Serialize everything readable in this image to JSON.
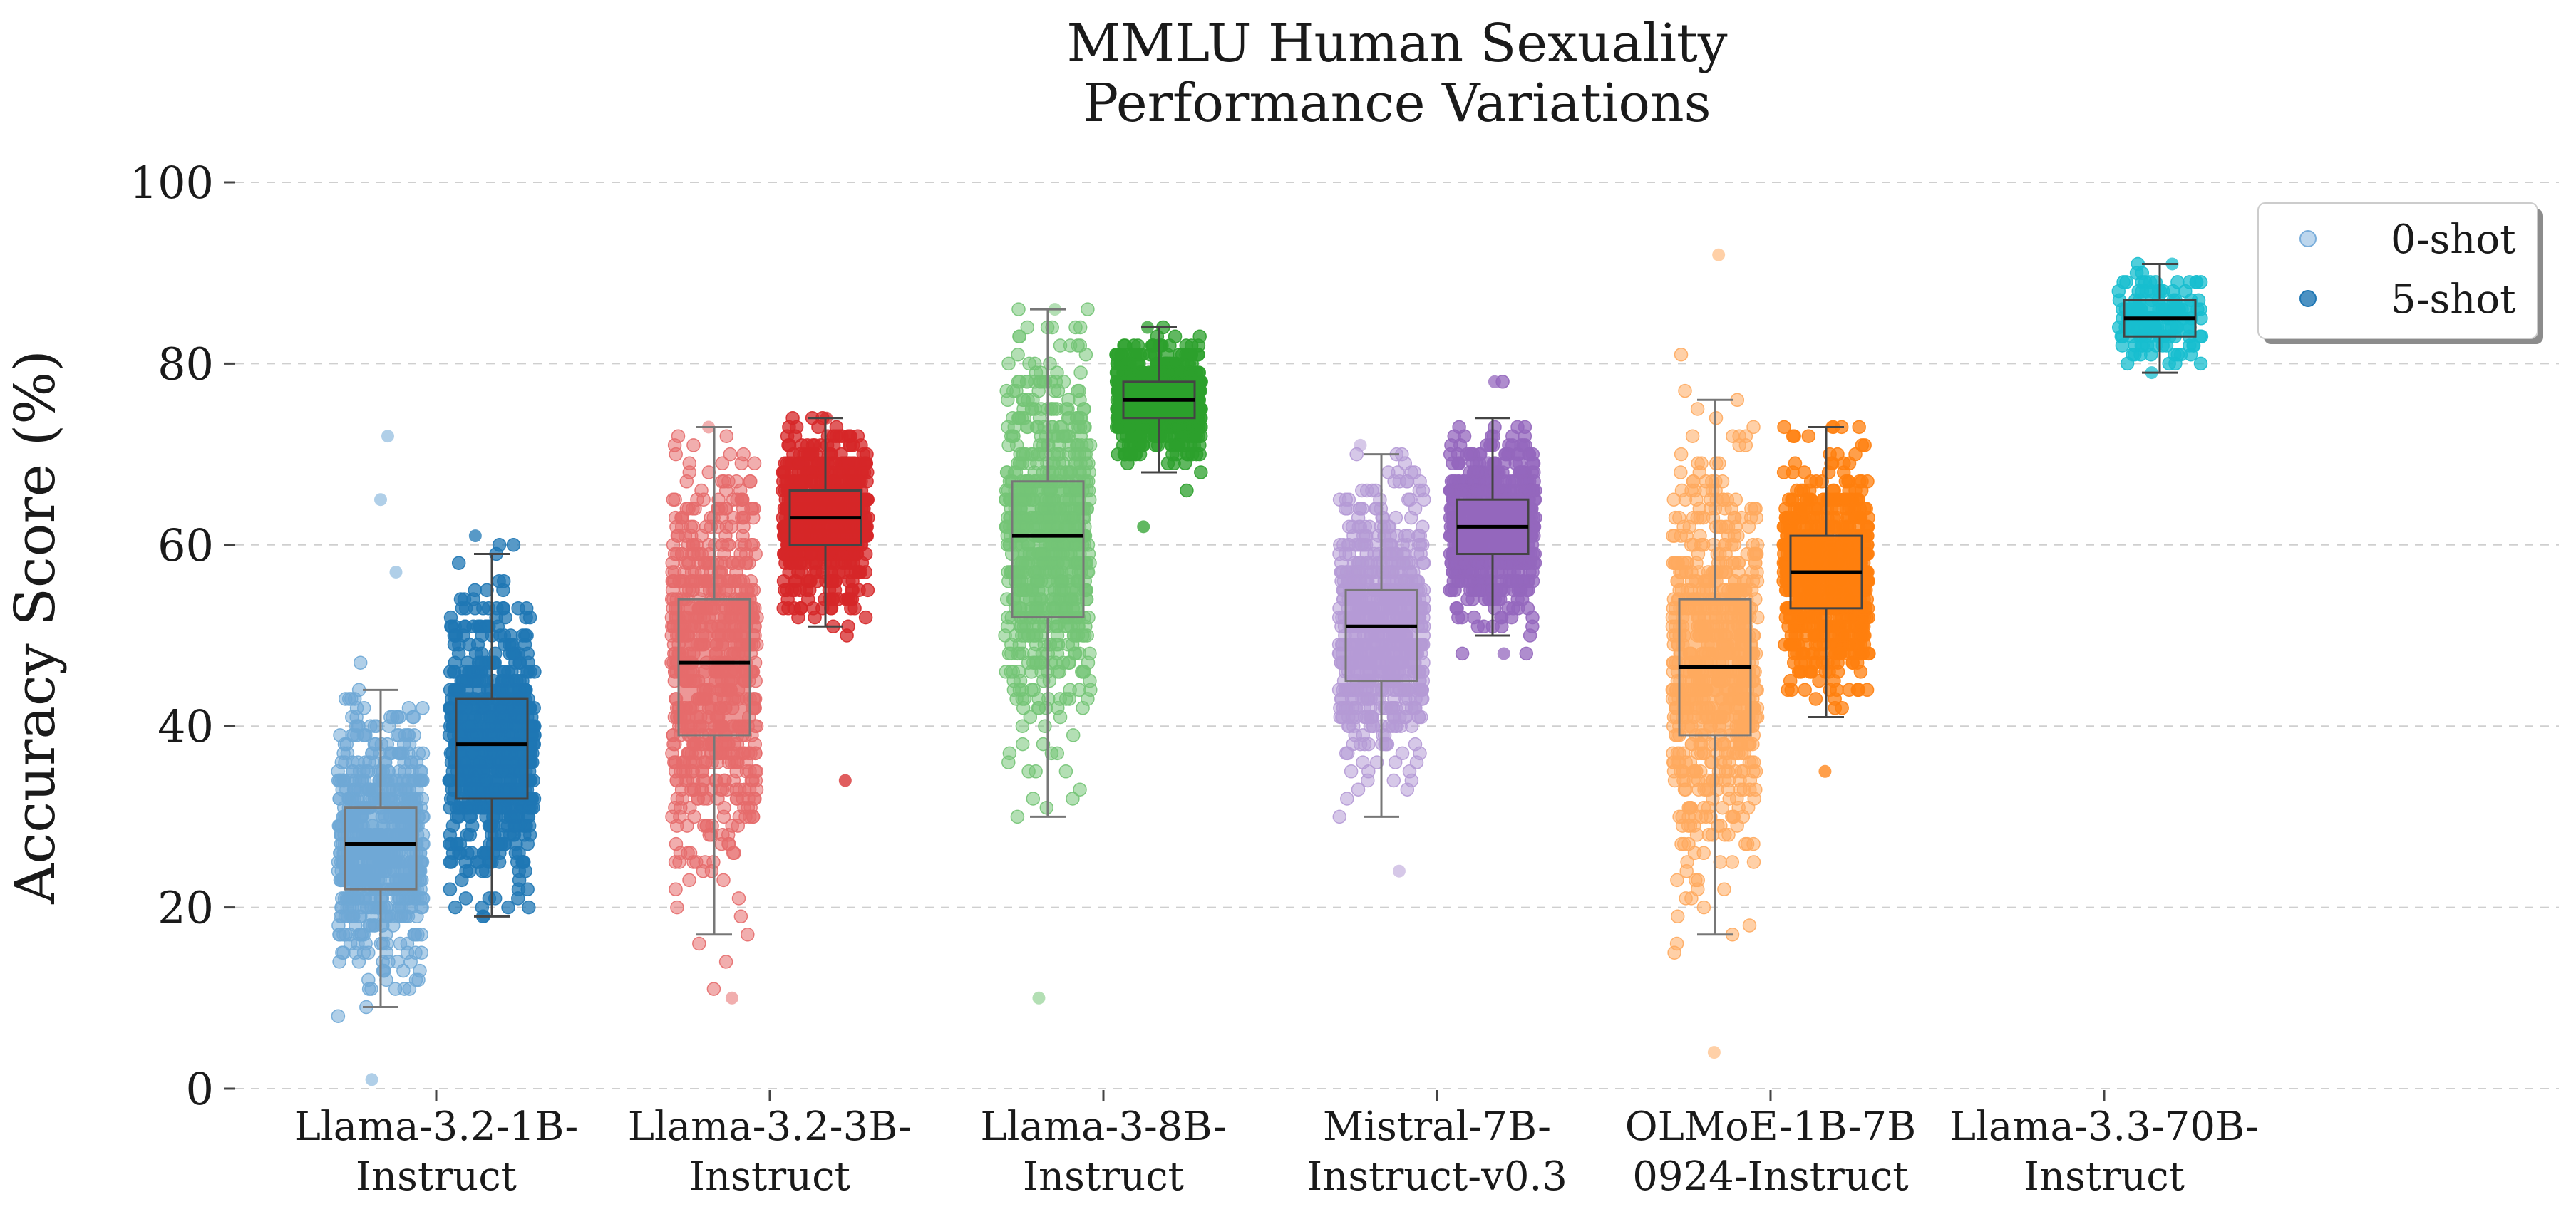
{
  "chart_data": {
    "type": "box-strip",
    "title_lines": [
      "MMLU Human Sexuality",
      "Performance Variations"
    ],
    "ylabel": "Accuracy Score (%)",
    "ylim": [
      0,
      100
    ],
    "yticks": [
      0,
      20,
      40,
      60,
      80,
      100
    ],
    "grid": "horizontal-dashed",
    "legend": {
      "placement": "top-right",
      "entries": [
        {
          "label": "0-shot",
          "color": "#7aaedb",
          "alpha": 0.5
        },
        {
          "label": "5-shot",
          "color": "#1f77b4",
          "alpha": 0.8
        }
      ]
    },
    "categories": [
      {
        "name_lines": [
          "Llama-3.2-1B-",
          "Instruct"
        ],
        "series": [
          {
            "shot": "0-shot",
            "color": "#6fa8d6",
            "whisker_low": 9,
            "q1": 22,
            "median": 27,
            "q3": 31,
            "whisker_high": 44,
            "point_min": 1,
            "point_max": 57,
            "outliers": [
              65,
              72
            ],
            "density": 1.0
          },
          {
            "shot": "5-shot",
            "color": "#1f77b4",
            "whisker_low": 19,
            "q1": 32,
            "median": 38,
            "q3": 43,
            "whisker_high": 59,
            "point_min": 19,
            "point_max": 61,
            "outliers": [],
            "density": 1.0
          }
        ]
      },
      {
        "name_lines": [
          "Llama-3.2-3B-",
          "Instruct"
        ],
        "series": [
          {
            "shot": "0-shot",
            "color": "#e56b6b",
            "whisker_low": 17,
            "q1": 39,
            "median": 47,
            "q3": 54,
            "whisker_high": 73,
            "point_min": 10,
            "point_max": 73,
            "outliers": [],
            "density": 1.0
          },
          {
            "shot": "5-shot",
            "color": "#d62728",
            "whisker_low": 51,
            "q1": 60,
            "median": 63,
            "q3": 66,
            "whisker_high": 74,
            "point_min": 34,
            "point_max": 74,
            "outliers": [],
            "density": 1.0
          }
        ]
      },
      {
        "name_lines": [
          "Llama-3-8B-",
          "Instruct"
        ],
        "series": [
          {
            "shot": "0-shot",
            "color": "#74c476",
            "whisker_low": 30,
            "q1": 52,
            "median": 61,
            "q3": 67,
            "whisker_high": 86,
            "point_min": 10,
            "point_max": 86,
            "outliers": [],
            "density": 1.0
          },
          {
            "shot": "5-shot",
            "color": "#2ca02c",
            "whisker_low": 68,
            "q1": 74,
            "median": 76,
            "q3": 78,
            "whisker_high": 84,
            "point_min": 62,
            "point_max": 84,
            "outliers": [],
            "density": 1.0
          }
        ]
      },
      {
        "name_lines": [
          "Mistral-7B-",
          "Instruct-v0.3"
        ],
        "series": [
          {
            "shot": "0-shot",
            "color": "#b59ad6",
            "whisker_low": 30,
            "q1": 45,
            "median": 51,
            "q3": 55,
            "whisker_high": 70,
            "point_min": 24,
            "point_max": 71,
            "outliers": [],
            "density": 1.0
          },
          {
            "shot": "5-shot",
            "color": "#9467bd",
            "whisker_low": 50,
            "q1": 59,
            "median": 62,
            "q3": 65,
            "whisker_high": 74,
            "point_min": 48,
            "point_max": 78,
            "outliers": [],
            "density": 1.0
          }
        ]
      },
      {
        "name_lines": [
          "OLMoE-1B-7B",
          "0924-Instruct"
        ],
        "series": [
          {
            "shot": "0-shot",
            "color": "#ffaa5e",
            "whisker_low": 17,
            "q1": 39,
            "median": 46.5,
            "q3": 54,
            "whisker_high": 76,
            "point_min": 4,
            "point_max": 92,
            "outliers": [],
            "density": 1.0
          },
          {
            "shot": "5-shot",
            "color": "#ff7f0e",
            "whisker_low": 41,
            "q1": 53,
            "median": 57,
            "q3": 61,
            "whisker_high": 73,
            "point_min": 35,
            "point_max": 73,
            "outliers": [],
            "density": 1.0
          }
        ]
      },
      {
        "name_lines": [
          "Llama-3.3-70B-",
          "Instruct"
        ],
        "series": [
          {
            "shot": "5-shot",
            "color": "#17becf",
            "whisker_low": 79,
            "q1": 83,
            "median": 85,
            "q3": 87,
            "whisker_high": 91,
            "point_min": 79,
            "point_max": 91,
            "outliers": [],
            "density": 0.18
          }
        ]
      }
    ]
  }
}
